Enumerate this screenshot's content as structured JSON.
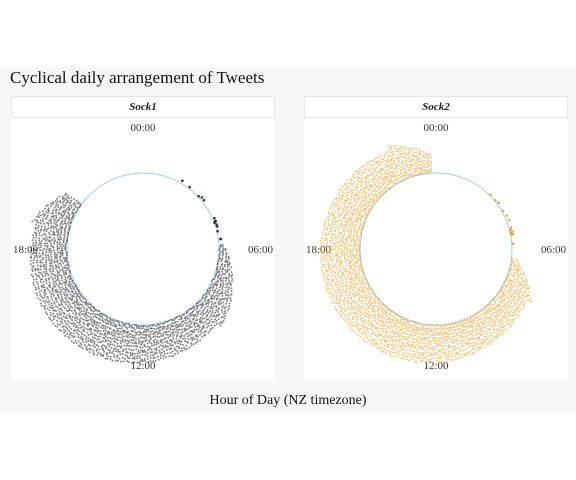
{
  "title": "Cyclical daily arrangement of Tweets",
  "xlabel": "Hour of Day (NZ timezone)",
  "chart_data": {
    "type": "scatter",
    "coordinate_system": "polar",
    "title": "Cyclical daily arrangement of Tweets",
    "xlabel": "Hour of Day (NZ timezone)",
    "tick_labels": [
      "00:00",
      "06:00",
      "12:00",
      "18:00"
    ],
    "panels": [
      {
        "name": "Sock1",
        "color": "#222222",
        "active_hours": [
          5.8,
          20.4
        ],
        "sparse_hours": [
          2.0,
          5.8
        ],
        "density_ramp_hours": [
          5.8,
          9.0
        ]
      },
      {
        "name": "Sock2",
        "color": "#e8a126",
        "active_hours": [
          6.5,
          23.8
        ],
        "sparse_hours": [
          3.0,
          6.5
        ],
        "density_ramp_hours": [
          6.5,
          8.0
        ]
      }
    ],
    "reference_circle_color": "#a6cde8"
  }
}
